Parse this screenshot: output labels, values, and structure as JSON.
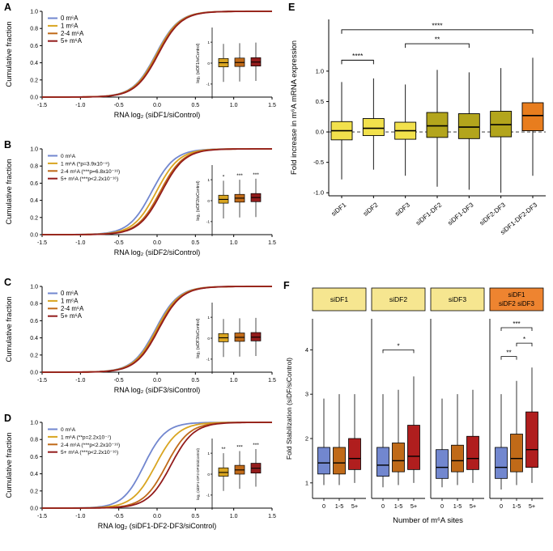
{
  "panel_labels": {
    "A": "A",
    "B": "B",
    "C": "C",
    "D": "D",
    "E": "E",
    "F": "F"
  },
  "colors": {
    "m6a_0": "#7287cf",
    "m6a_1": "#d9a521",
    "m6a_24": "#c06a18",
    "m6a_5plus": "#931c1c",
    "e_yellow": "#f2e14c",
    "e_olive": "#b3a51c",
    "e_orange": "#e87d1e",
    "f_header_yellow": "#f6e690",
    "f_header_orange": "#ee8430"
  },
  "chart_data": [
    {
      "id": "A",
      "type": "line",
      "subtype": "cumulative-fraction",
      "xlabel": "RNA log₂ (siDF1/siControl)",
      "ylabel": "Cumulative fraction",
      "xlim": [
        -1.5,
        1.5
      ],
      "ylim": [
        0,
        1
      ],
      "xticks": [
        -1.5,
        -1.0,
        -0.5,
        0.0,
        0.5,
        1.0,
        1.5
      ],
      "yticks": [
        0.0,
        0.2,
        0.4,
        0.6,
        0.8,
        1.0
      ],
      "series": [
        {
          "name": "0 m⁶A",
          "color": "#7287cf",
          "midpoint": -0.015,
          "scale": 0.15
        },
        {
          "name": "1 m⁶A",
          "color": "#d9a521",
          "midpoint": -0.005,
          "scale": 0.15
        },
        {
          "name": "2-4 m⁶A",
          "color": "#c06a18",
          "midpoint": 0.005,
          "scale": 0.15
        },
        {
          "name": "5+ m⁶A",
          "color": "#931c1c",
          "midpoint": 0.015,
          "scale": 0.15
        }
      ],
      "inset": {
        "ylabel": "log₂ (siDF1/siControl)",
        "ylim": [
          -1.7,
          1.7
        ],
        "yticks": [
          -1,
          0,
          1
        ],
        "boxes": [
          {
            "color": "#d9a521",
            "lo": -0.9,
            "q1": -0.18,
            "med": 0.02,
            "q3": 0.22,
            "hi": 0.92,
            "sig": ""
          },
          {
            "color": "#c06a18",
            "lo": -0.88,
            "q1": -0.16,
            "med": 0.03,
            "q3": 0.24,
            "hi": 0.95,
            "sig": ""
          },
          {
            "color": "#931c1c",
            "lo": -0.85,
            "q1": -0.14,
            "med": 0.05,
            "q3": 0.26,
            "hi": 0.98,
            "sig": ""
          }
        ]
      }
    },
    {
      "id": "B",
      "type": "line",
      "subtype": "cumulative-fraction",
      "xlabel": "RNA log₂ (siDF2/siControl)",
      "ylabel": "Cumulative fraction",
      "xlim": [
        -1.5,
        1.5
      ],
      "ylim": [
        0,
        1
      ],
      "xticks": [
        -1.5,
        -1.0,
        -0.5,
        0.0,
        0.5,
        1.0,
        1.5
      ],
      "yticks": [
        0.0,
        0.2,
        0.4,
        0.6,
        0.8,
        1.0
      ],
      "series": [
        {
          "name": "0 m⁶A",
          "color": "#7287cf",
          "midpoint": -0.07,
          "scale": 0.15
        },
        {
          "name": "1 m⁶A (*p=3.9x10⁻⁵)",
          "color": "#d9a521",
          "midpoint": -0.01,
          "scale": 0.15
        },
        {
          "name": "2-4 m⁶A (***p=6.8x10⁻¹⁶)",
          "color": "#c06a18",
          "midpoint": 0.04,
          "scale": 0.15
        },
        {
          "name": "5+ m⁶A (***p<2.2x10⁻¹⁶)",
          "color": "#931c1c",
          "midpoint": 0.06,
          "scale": 0.15
        }
      ],
      "inset": {
        "ylabel": "log₂ (siDF2/siControl)",
        "ylim": [
          -1.7,
          1.7
        ],
        "yticks": [
          -1,
          0,
          1
        ],
        "boxes": [
          {
            "color": "#d9a521",
            "lo": -0.85,
            "q1": -0.12,
            "med": 0.06,
            "q3": 0.26,
            "hi": 0.95,
            "sig": "*"
          },
          {
            "color": "#c06a18",
            "lo": -0.8,
            "q1": -0.07,
            "med": 0.12,
            "q3": 0.3,
            "hi": 1.0,
            "sig": "***"
          },
          {
            "color": "#931c1c",
            "lo": -0.78,
            "q1": -0.05,
            "med": 0.15,
            "q3": 0.34,
            "hi": 1.05,
            "sig": "***"
          }
        ]
      }
    },
    {
      "id": "C",
      "type": "line",
      "subtype": "cumulative-fraction",
      "xlabel": "RNA log₂ (siDF3/siControl)",
      "ylabel": "Cumulative fraction",
      "xlim": [
        -1.5,
        1.5
      ],
      "ylim": [
        0,
        1
      ],
      "xticks": [
        -1.5,
        -1.0,
        -0.5,
        0.0,
        0.5,
        1.0,
        1.5
      ],
      "yticks": [
        0.0,
        0.2,
        0.4,
        0.6,
        0.8,
        1.0
      ],
      "series": [
        {
          "name": "0 m⁶A",
          "color": "#7287cf",
          "midpoint": -0.02,
          "scale": 0.15
        },
        {
          "name": "1 m⁶A",
          "color": "#d9a521",
          "midpoint": -0.005,
          "scale": 0.15
        },
        {
          "name": "2-4 m⁶A",
          "color": "#c06a18",
          "midpoint": 0.01,
          "scale": 0.15
        },
        {
          "name": "5+ m⁶A",
          "color": "#931c1c",
          "midpoint": 0.02,
          "scale": 0.15
        }
      ],
      "inset": {
        "ylabel": "log₂ (siDF3/siControl)",
        "ylim": [
          -1.7,
          1.7
        ],
        "yticks": [
          -1,
          0,
          1
        ],
        "boxes": [
          {
            "color": "#d9a521",
            "lo": -0.9,
            "q1": -0.17,
            "med": 0.02,
            "q3": 0.22,
            "hi": 0.92,
            "sig": ""
          },
          {
            "color": "#c06a18",
            "lo": -0.88,
            "q1": -0.15,
            "med": 0.04,
            "q3": 0.25,
            "hi": 0.95,
            "sig": ""
          },
          {
            "color": "#931c1c",
            "lo": -0.85,
            "q1": -0.13,
            "med": 0.05,
            "q3": 0.27,
            "hi": 0.97,
            "sig": ""
          }
        ]
      }
    },
    {
      "id": "D",
      "type": "line",
      "subtype": "cumulative-fraction",
      "xlabel": "RNA log₂ (siDF1-DF2-DF3/siControl)",
      "ylabel": "Cumulative fraction",
      "xlim": [
        -1.5,
        1.5
      ],
      "ylim": [
        0,
        1
      ],
      "xticks": [
        -1.5,
        -1.0,
        -0.5,
        0.0,
        0.5,
        1.0,
        1.5
      ],
      "yticks": [
        0.0,
        0.2,
        0.4,
        0.6,
        0.8,
        1.0
      ],
      "series": [
        {
          "name": "0 m⁶A",
          "color": "#7287cf",
          "midpoint": -0.17,
          "scale": 0.14
        },
        {
          "name": "1 m⁶A (**p=2.2x10⁻⁷)",
          "color": "#d9a521",
          "midpoint": -0.02,
          "scale": 0.15
        },
        {
          "name": "2-4 m⁶A (***p<2.2x10⁻¹⁶)",
          "color": "#c06a18",
          "midpoint": 0.12,
          "scale": 0.15
        },
        {
          "name": "5+ m⁶A (***p<2.2x10⁻¹⁶)",
          "color": "#931c1c",
          "midpoint": 0.18,
          "scale": 0.15
        }
      ],
      "inset": {
        "ylabel": "log₂ (siDF1-DF2-DF3/siControl)",
        "ylim": [
          -1.7,
          1.7
        ],
        "yticks": [
          -1,
          0,
          1
        ],
        "boxes": [
          {
            "color": "#d9a521",
            "lo": -0.8,
            "q1": -0.1,
            "med": 0.08,
            "q3": 0.3,
            "hi": 1.0,
            "sig": "**"
          },
          {
            "color": "#c06a18",
            "lo": -0.7,
            "q1": 0.0,
            "med": 0.2,
            "q3": 0.42,
            "hi": 1.1,
            "sig": "***"
          },
          {
            "color": "#931c1c",
            "lo": -0.6,
            "q1": 0.05,
            "med": 0.28,
            "q3": 0.52,
            "hi": 1.2,
            "sig": "***"
          }
        ]
      }
    },
    {
      "id": "E",
      "type": "box",
      "ylabel": "Fold increase in m⁶A mRNA expression",
      "ylim": [
        -1.05,
        1.85
      ],
      "yticks": [
        -1.0,
        -0.5,
        0.0,
        0.5,
        1.0
      ],
      "zero_line": true,
      "categories": [
        "siDF1",
        "siDF2",
        "siDF3",
        "siDF1-DF2",
        "siDF1-DF3",
        "siDF2-DF3",
        "siDF1-DF2-DF3"
      ],
      "boxes": [
        {
          "color": "#f2e14c",
          "lo": -0.78,
          "q1": -0.13,
          "med": 0.02,
          "q3": 0.17,
          "hi": 0.82
        },
        {
          "color": "#f2e14c",
          "lo": -0.62,
          "q1": -0.06,
          "med": 0.06,
          "q3": 0.22,
          "hi": 0.88
        },
        {
          "color": "#f2e14c",
          "lo": -0.72,
          "q1": -0.12,
          "med": 0.02,
          "q3": 0.16,
          "hi": 0.78
        },
        {
          "color": "#b3a51c",
          "lo": -0.9,
          "q1": -0.09,
          "med": 0.1,
          "q3": 0.32,
          "hi": 1.02
        },
        {
          "color": "#b3a51c",
          "lo": -0.95,
          "q1": -0.11,
          "med": 0.08,
          "q3": 0.3,
          "hi": 0.98
        },
        {
          "color": "#b3a51c",
          "lo": -1.0,
          "q1": -0.08,
          "med": 0.12,
          "q3": 0.34,
          "hi": 1.05
        },
        {
          "color": "#e87d1e",
          "lo": -0.72,
          "q1": 0.02,
          "med": 0.27,
          "q3": 0.48,
          "hi": 1.22
        }
      ],
      "brackets": [
        {
          "from": 0,
          "to": 1,
          "y": 1.18,
          "label": "****"
        },
        {
          "from": 2,
          "to": 4,
          "y": 1.45,
          "label": "**"
        },
        {
          "from": 0,
          "to": 6,
          "y": 1.68,
          "label": "****"
        }
      ]
    },
    {
      "id": "F",
      "type": "box",
      "subtype": "faceted",
      "ylabel": "Fold Stabilization (siDF/siControl)",
      "xlabel": "Number of m⁶A sites",
      "ylim": [
        0.65,
        4.7
      ],
      "yticks": [
        1,
        2,
        3,
        4
      ],
      "categories": [
        "0",
        "1-5",
        "5+"
      ],
      "box_colors": [
        "#7287cf",
        "#c06a18",
        "#b01e1e"
      ],
      "facets": [
        {
          "title": [
            "siDF1"
          ],
          "header_color": "#f6e690",
          "boxes": [
            {
              "lo": 0.95,
              "q1": 1.2,
              "med": 1.45,
              "q3": 1.8,
              "hi": 2.9
            },
            {
              "lo": 0.95,
              "q1": 1.2,
              "med": 1.45,
              "q3": 1.8,
              "hi": 3.0
            },
            {
              "lo": 1.0,
              "q1": 1.3,
              "med": 1.55,
              "q3": 2.0,
              "hi": 3.0
            }
          ],
          "brackets": []
        },
        {
          "title": [
            "siDF2"
          ],
          "header_color": "#f6e690",
          "boxes": [
            {
              "lo": 0.9,
              "q1": 1.15,
              "med": 1.4,
              "q3": 1.8,
              "hi": 3.0
            },
            {
              "lo": 0.95,
              "q1": 1.25,
              "med": 1.5,
              "q3": 1.9,
              "hi": 3.1
            },
            {
              "lo": 1.0,
              "q1": 1.3,
              "med": 1.6,
              "q3": 2.3,
              "hi": 3.4
            }
          ],
          "brackets": [
            {
              "from": 0,
              "to": 2,
              "y": 4.0,
              "label": "*"
            }
          ]
        },
        {
          "title": [
            "siDF3"
          ],
          "header_color": "#f6e690",
          "boxes": [
            {
              "lo": 0.9,
              "q1": 1.1,
              "med": 1.35,
              "q3": 1.75,
              "hi": 2.9
            },
            {
              "lo": 0.95,
              "q1": 1.25,
              "med": 1.5,
              "q3": 1.85,
              "hi": 3.0
            },
            {
              "lo": 1.0,
              "q1": 1.3,
              "med": 1.55,
              "q3": 2.05,
              "hi": 3.1
            }
          ],
          "brackets": []
        },
        {
          "title": [
            "siDF1",
            "siDF2 siDF3"
          ],
          "header_color": "#ee8430",
          "boxes": [
            {
              "lo": 0.85,
              "q1": 1.1,
              "med": 1.35,
              "q3": 1.8,
              "hi": 3.0
            },
            {
              "lo": 0.95,
              "q1": 1.25,
              "med": 1.55,
              "q3": 2.1,
              "hi": 3.3
            },
            {
              "lo": 1.0,
              "q1": 1.35,
              "med": 1.75,
              "q3": 2.6,
              "hi": 3.6
            }
          ],
          "brackets": [
            {
              "from": 0,
              "to": 1,
              "y": 3.85,
              "label": "**"
            },
            {
              "from": 1,
              "to": 2,
              "y": 4.15,
              "label": "*"
            },
            {
              "from": 0,
              "to": 2,
              "y": 4.5,
              "label": "***"
            }
          ]
        }
      ]
    }
  ]
}
